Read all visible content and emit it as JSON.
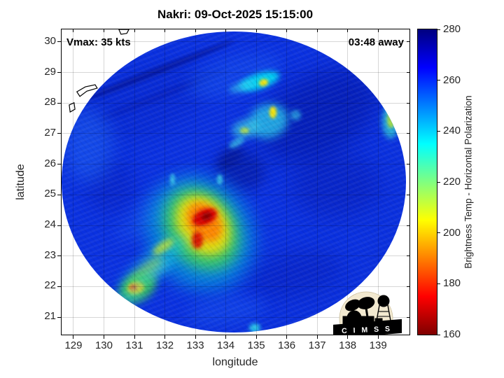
{
  "figure": {
    "title": "Nakri: 09-Oct-2025 15:15:00",
    "vmax_label": "Vmax: 35 kts",
    "eta_label": "03:48 away",
    "xlabel": "longitude",
    "ylabel": "latitude",
    "colorbar_label": "Brightness Temp - Horizontal Polarization",
    "logo_text": "C I M S S"
  },
  "chart_data": {
    "type": "heatmap",
    "title": "Nakri: 09-Oct-2025 15:15:00",
    "xlabel": "longitude",
    "ylabel": "latitude",
    "xlim": [
      128.61,
      140.03
    ],
    "ylim": [
      20.43,
      30.41
    ],
    "x_ticks": [
      129,
      130,
      131,
      132,
      133,
      134,
      135,
      136,
      137,
      138,
      139
    ],
    "y_ticks": [
      21,
      22,
      23,
      24,
      25,
      26,
      27,
      28,
      29,
      30
    ],
    "grid": true,
    "annotations": [
      {
        "text": "Vmax: 35 kts",
        "position": "top-left"
      },
      {
        "text": "03:48 away",
        "position": "top-right"
      }
    ],
    "colorbar": {
      "label": "Brightness Temp - Horizontal Polarization",
      "units": "K",
      "range": [
        160,
        280
      ],
      "ticks": [
        160,
        180,
        200,
        220,
        240,
        260,
        280
      ],
      "colormap": "reversed-jet",
      "stops": [
        {
          "v": 280,
          "c": "#00007f"
        },
        {
          "v": 265,
          "c": "#0000ff"
        },
        {
          "v": 250,
          "c": "#0080ff"
        },
        {
          "v": 235,
          "c": "#00ffff"
        },
        {
          "v": 220,
          "c": "#80ff80"
        },
        {
          "v": 205,
          "c": "#ffff00"
        },
        {
          "v": 190,
          "c": "#ff8000"
        },
        {
          "v": 175,
          "c": "#ff0000"
        },
        {
          "v": 160,
          "c": "#7f0000"
        }
      ]
    },
    "swath": {
      "center_lon": 134.26,
      "center_lat": 25.42,
      "radius_lon": 5.66,
      "radius_lat": 4.93,
      "base_color": "#0a31e0",
      "base_temp_k": 258
    },
    "features": [
      {
        "name": "tone-upper-left-wash",
        "lon": 131.3,
        "lat": 28.0,
        "w": 4.5,
        "h": 2.2,
        "rot": -21,
        "color": "#0726c8",
        "blur": 12,
        "op": 0.45,
        "t": 262
      },
      {
        "name": "scan-edge-line",
        "lon": 131.67,
        "lat": 29.02,
        "w": 5.6,
        "h": 0.22,
        "rot": -21.5,
        "color": "#020878",
        "blur": 3,
        "op": 0.5,
        "t": 268
      },
      {
        "name": "scan-edge-line-2",
        "lon": 131.9,
        "lat": 28.25,
        "w": 4.5,
        "h": 0.18,
        "rot": -21.5,
        "color": "#041090",
        "blur": 4,
        "op": 0.35,
        "t": 266
      },
      {
        "name": "dark-upper-right",
        "lon": 137.0,
        "lat": 27.6,
        "w": 4.2,
        "h": 2.6,
        "rot": -28,
        "color": "#000f96",
        "blur": 16,
        "op": 0.5,
        "t": 270
      },
      {
        "name": "dark-right-mid",
        "lon": 137.6,
        "lat": 25.3,
        "w": 3.0,
        "h": 2.2,
        "rot": 0,
        "color": "#0413a0",
        "blur": 16,
        "op": 0.35,
        "t": 266
      },
      {
        "name": "dark-center-swirl",
        "lon": 134.5,
        "lat": 25.85,
        "w": 1.7,
        "h": 1.3,
        "rot": 25,
        "color": "#02128c",
        "blur": 9,
        "op": 0.5,
        "t": 270
      },
      {
        "name": "dark-center-arc",
        "lon": 134.15,
        "lat": 26.2,
        "w": 1.0,
        "h": 0.45,
        "rot": -40,
        "color": "#02107e",
        "blur": 6,
        "op": 0.45,
        "t": 271
      },
      {
        "name": "dark-lower-right",
        "lon": 136.3,
        "lat": 22.4,
        "w": 3.2,
        "h": 1.5,
        "rot": -12,
        "color": "#0413a0",
        "blur": 14,
        "op": 0.3,
        "t": 264
      },
      {
        "name": "dark-left-patch",
        "lon": 130.2,
        "lat": 25.3,
        "w": 1.6,
        "h": 1.8,
        "rot": 0,
        "color": "#0415a8",
        "blur": 12,
        "op": 0.3,
        "t": 263
      },
      {
        "name": "light-left-edge",
        "lon": 129.5,
        "lat": 26.6,
        "w": 1.6,
        "h": 2.4,
        "rot": 0,
        "color": "#1f63f2",
        "blur": 12,
        "op": 0.5,
        "t": 252
      },
      {
        "name": "light-top-center",
        "lon": 134.3,
        "lat": 28.9,
        "w": 3.2,
        "h": 1.2,
        "rot": -15,
        "color": "#1a57ef",
        "blur": 10,
        "op": 0.45,
        "t": 252
      },
      {
        "name": "light-bottom-center",
        "lon": 134.0,
        "lat": 21.2,
        "w": 2.6,
        "h": 0.9,
        "rot": -8,
        "color": "#1a55ee",
        "blur": 10,
        "op": 0.45,
        "t": 252
      },
      {
        "name": "light-mid-left-band",
        "lon": 131.8,
        "lat": 24.6,
        "w": 3.4,
        "h": 1.0,
        "rot": -38,
        "color": "#1a55ee",
        "blur": 10,
        "op": 0.4,
        "t": 252
      },
      {
        "name": "convection-halo-cyan",
        "lon": 133.15,
        "lat": 23.75,
        "w": 3.4,
        "h": 3.9,
        "rot": -35,
        "color": "#00cfd6",
        "blur": 13,
        "op": 0.5,
        "t": 234
      },
      {
        "name": "convection-halo-green",
        "lon": 133.2,
        "lat": 23.9,
        "w": 2.3,
        "h": 2.9,
        "rot": -35,
        "color": "#46db46",
        "blur": 9,
        "op": 0.75,
        "t": 220
      },
      {
        "name": "convection-halo-yellow",
        "lon": 133.25,
        "lat": 24.0,
        "w": 1.6,
        "h": 2.1,
        "rot": -35,
        "color": "#ffdf00",
        "blur": 7,
        "op": 0.85,
        "t": 205
      },
      {
        "name": "convection-core-orange",
        "lon": 133.3,
        "lat": 24.1,
        "w": 1.0,
        "h": 1.4,
        "rot": -35,
        "color": "#ff7d00",
        "blur": 5,
        "op": 0.9,
        "t": 191
      },
      {
        "name": "convection-core-red",
        "lon": 133.32,
        "lat": 24.27,
        "w": 0.85,
        "h": 0.5,
        "rot": -25,
        "color": "#d60000",
        "blur": 3,
        "op": 1,
        "t": 173
      },
      {
        "name": "convection-core-darkred",
        "lon": 133.38,
        "lat": 24.3,
        "w": 0.33,
        "h": 0.22,
        "rot": -25,
        "color": "#8f0000",
        "blur": 2,
        "op": 1,
        "t": 163
      },
      {
        "name": "convection-core-red-2",
        "lon": 133.07,
        "lat": 23.52,
        "w": 0.35,
        "h": 0.55,
        "rot": 0,
        "color": "#d81000",
        "blur": 3,
        "op": 0.95,
        "t": 175
      },
      {
        "name": "band-sw-cyan",
        "lon": 131.6,
        "lat": 22.7,
        "w": 2.8,
        "h": 0.8,
        "rot": -40,
        "color": "#17c8dc",
        "blur": 8,
        "op": 0.5,
        "t": 233
      },
      {
        "name": "band-sw-yellow",
        "lon": 131.95,
        "lat": 23.3,
        "w": 0.8,
        "h": 0.3,
        "rot": -35,
        "color": "#c8e42a",
        "blur": 4,
        "op": 0.8,
        "t": 211
      },
      {
        "name": "band-sw-green",
        "lon": 131.35,
        "lat": 22.45,
        "w": 1.5,
        "h": 0.45,
        "rot": -42,
        "color": "#b0e431",
        "blur": 6,
        "op": 0.6,
        "t": 213
      },
      {
        "name": "sw-spot-green",
        "lon": 131.1,
        "lat": 21.95,
        "w": 1.3,
        "h": 0.85,
        "rot": -30,
        "color": "#3fd83f",
        "blur": 6,
        "op": 0.8,
        "t": 219
      },
      {
        "name": "sw-spot-yellow",
        "lon": 131.05,
        "lat": 21.95,
        "w": 0.55,
        "h": 0.4,
        "rot": -20,
        "color": "#ffd400",
        "blur": 3,
        "op": 1,
        "t": 203
      },
      {
        "name": "sw-spot-orange",
        "lon": 130.97,
        "lat": 21.97,
        "w": 0.26,
        "h": 0.2,
        "rot": 0,
        "color": "#ff5f00",
        "blur": 2,
        "op": 1,
        "t": 188
      },
      {
        "name": "sw-streak-cyan-1",
        "lon": 131.5,
        "lat": 22.35,
        "w": 1.8,
        "h": 0.4,
        "rot": -35,
        "color": "#2fc4e8",
        "blur": 6,
        "op": 0.45,
        "t": 238
      },
      {
        "name": "sw-streak-cyan-2",
        "lon": 130.75,
        "lat": 21.6,
        "w": 1.2,
        "h": 0.35,
        "rot": -20,
        "color": "#2fc4e8",
        "blur": 6,
        "op": 0.45,
        "t": 238
      },
      {
        "name": "north-streak-cyan",
        "lon": 135.1,
        "lat": 28.72,
        "w": 1.35,
        "h": 0.5,
        "rot": -18,
        "color": "#00dff2",
        "blur": 4,
        "op": 0.9,
        "t": 232
      },
      {
        "name": "north-streak-tail",
        "lon": 134.55,
        "lat": 28.55,
        "w": 0.9,
        "h": 0.3,
        "rot": -18,
        "color": "#35ccf0",
        "blur": 4,
        "op": 0.6,
        "t": 240
      },
      {
        "name": "north-streak-yellow",
        "lon": 135.25,
        "lat": 28.68,
        "w": 0.3,
        "h": 0.22,
        "rot": -18,
        "color": "#ffe400",
        "blur": 2,
        "op": 0.95,
        "t": 205
      },
      {
        "name": "north2-blob-cyan",
        "lon": 135.4,
        "lat": 27.4,
        "w": 1.3,
        "h": 1.1,
        "rot": -20,
        "color": "#2bcdeb",
        "blur": 6,
        "op": 0.75,
        "t": 235
      },
      {
        "name": "north2-yellow",
        "lon": 135.55,
        "lat": 27.7,
        "w": 0.22,
        "h": 0.38,
        "rot": 0,
        "color": "#ffe800",
        "blur": 2,
        "op": 0.95,
        "t": 205
      },
      {
        "name": "north2-left-cyan",
        "lon": 134.65,
        "lat": 27.15,
        "w": 0.9,
        "h": 0.6,
        "rot": -15,
        "color": "#3fd4e2",
        "blur": 5,
        "op": 0.65,
        "t": 236
      },
      {
        "name": "north2-left-yellowgreen",
        "lon": 134.62,
        "lat": 27.1,
        "w": 0.3,
        "h": 0.2,
        "rot": 0,
        "color": "#c0e43a",
        "blur": 2,
        "op": 0.8,
        "t": 212
      },
      {
        "name": "north2-right-dot",
        "lon": 136.3,
        "lat": 27.6,
        "w": 0.35,
        "h": 0.35,
        "rot": 0,
        "color": "#35ccea",
        "blur": 3,
        "op": 0.6,
        "t": 238
      },
      {
        "name": "east-edge-cyan",
        "lon": 139.4,
        "lat": 27.4,
        "w": 0.55,
        "h": 1.1,
        "rot": 0,
        "color": "#2fc8d8",
        "blur": 4,
        "op": 0.8,
        "t": 233
      },
      {
        "name": "east-edge-yellow",
        "lon": 139.42,
        "lat": 27.45,
        "w": 0.25,
        "h": 0.55,
        "rot": 0,
        "color": "#b5e030",
        "blur": 2,
        "op": 0.85,
        "t": 212
      },
      {
        "name": "south-dot-cyan",
        "lon": 134.95,
        "lat": 20.65,
        "w": 0.38,
        "h": 0.3,
        "rot": 0,
        "color": "#2fd4e8",
        "blur": 3,
        "op": 0.9,
        "t": 235
      },
      {
        "name": "center-dot-cyan-1",
        "lon": 133.8,
        "lat": 25.5,
        "w": 0.2,
        "h": 0.35,
        "rot": 0,
        "color": "#3fd0e8",
        "blur": 2,
        "op": 0.8,
        "t": 237
      },
      {
        "name": "center-dot-cyan-2",
        "lon": 132.25,
        "lat": 25.5,
        "w": 0.18,
        "h": 0.4,
        "rot": 0,
        "color": "#3fd0e8",
        "blur": 2,
        "op": 0.8,
        "t": 237
      },
      {
        "name": "center-streak-cyan",
        "lon": 134.35,
        "lat": 26.7,
        "w": 0.55,
        "h": 0.22,
        "rot": -30,
        "color": "#3fd0e8",
        "blur": 3,
        "op": 0.7,
        "t": 238
      }
    ],
    "coastlines": [
      {
        "name": "island-a",
        "points": [
          [
            129.11,
            28.37
          ],
          [
            129.39,
            28.53
          ],
          [
            129.71,
            28.6
          ],
          [
            129.78,
            28.49
          ],
          [
            129.44,
            28.39
          ],
          [
            129.21,
            28.22
          ]
        ]
      },
      {
        "name": "island-b",
        "points": [
          [
            128.86,
            27.94
          ],
          [
            129.02,
            28.01
          ],
          [
            129.05,
            27.8
          ],
          [
            128.89,
            27.71
          ]
        ]
      },
      {
        "name": "island-c",
        "points": [
          [
            130.49,
            30.41
          ],
          [
            130.82,
            30.41
          ],
          [
            130.75,
            30.28
          ],
          [
            130.56,
            30.25
          ]
        ]
      }
    ]
  }
}
